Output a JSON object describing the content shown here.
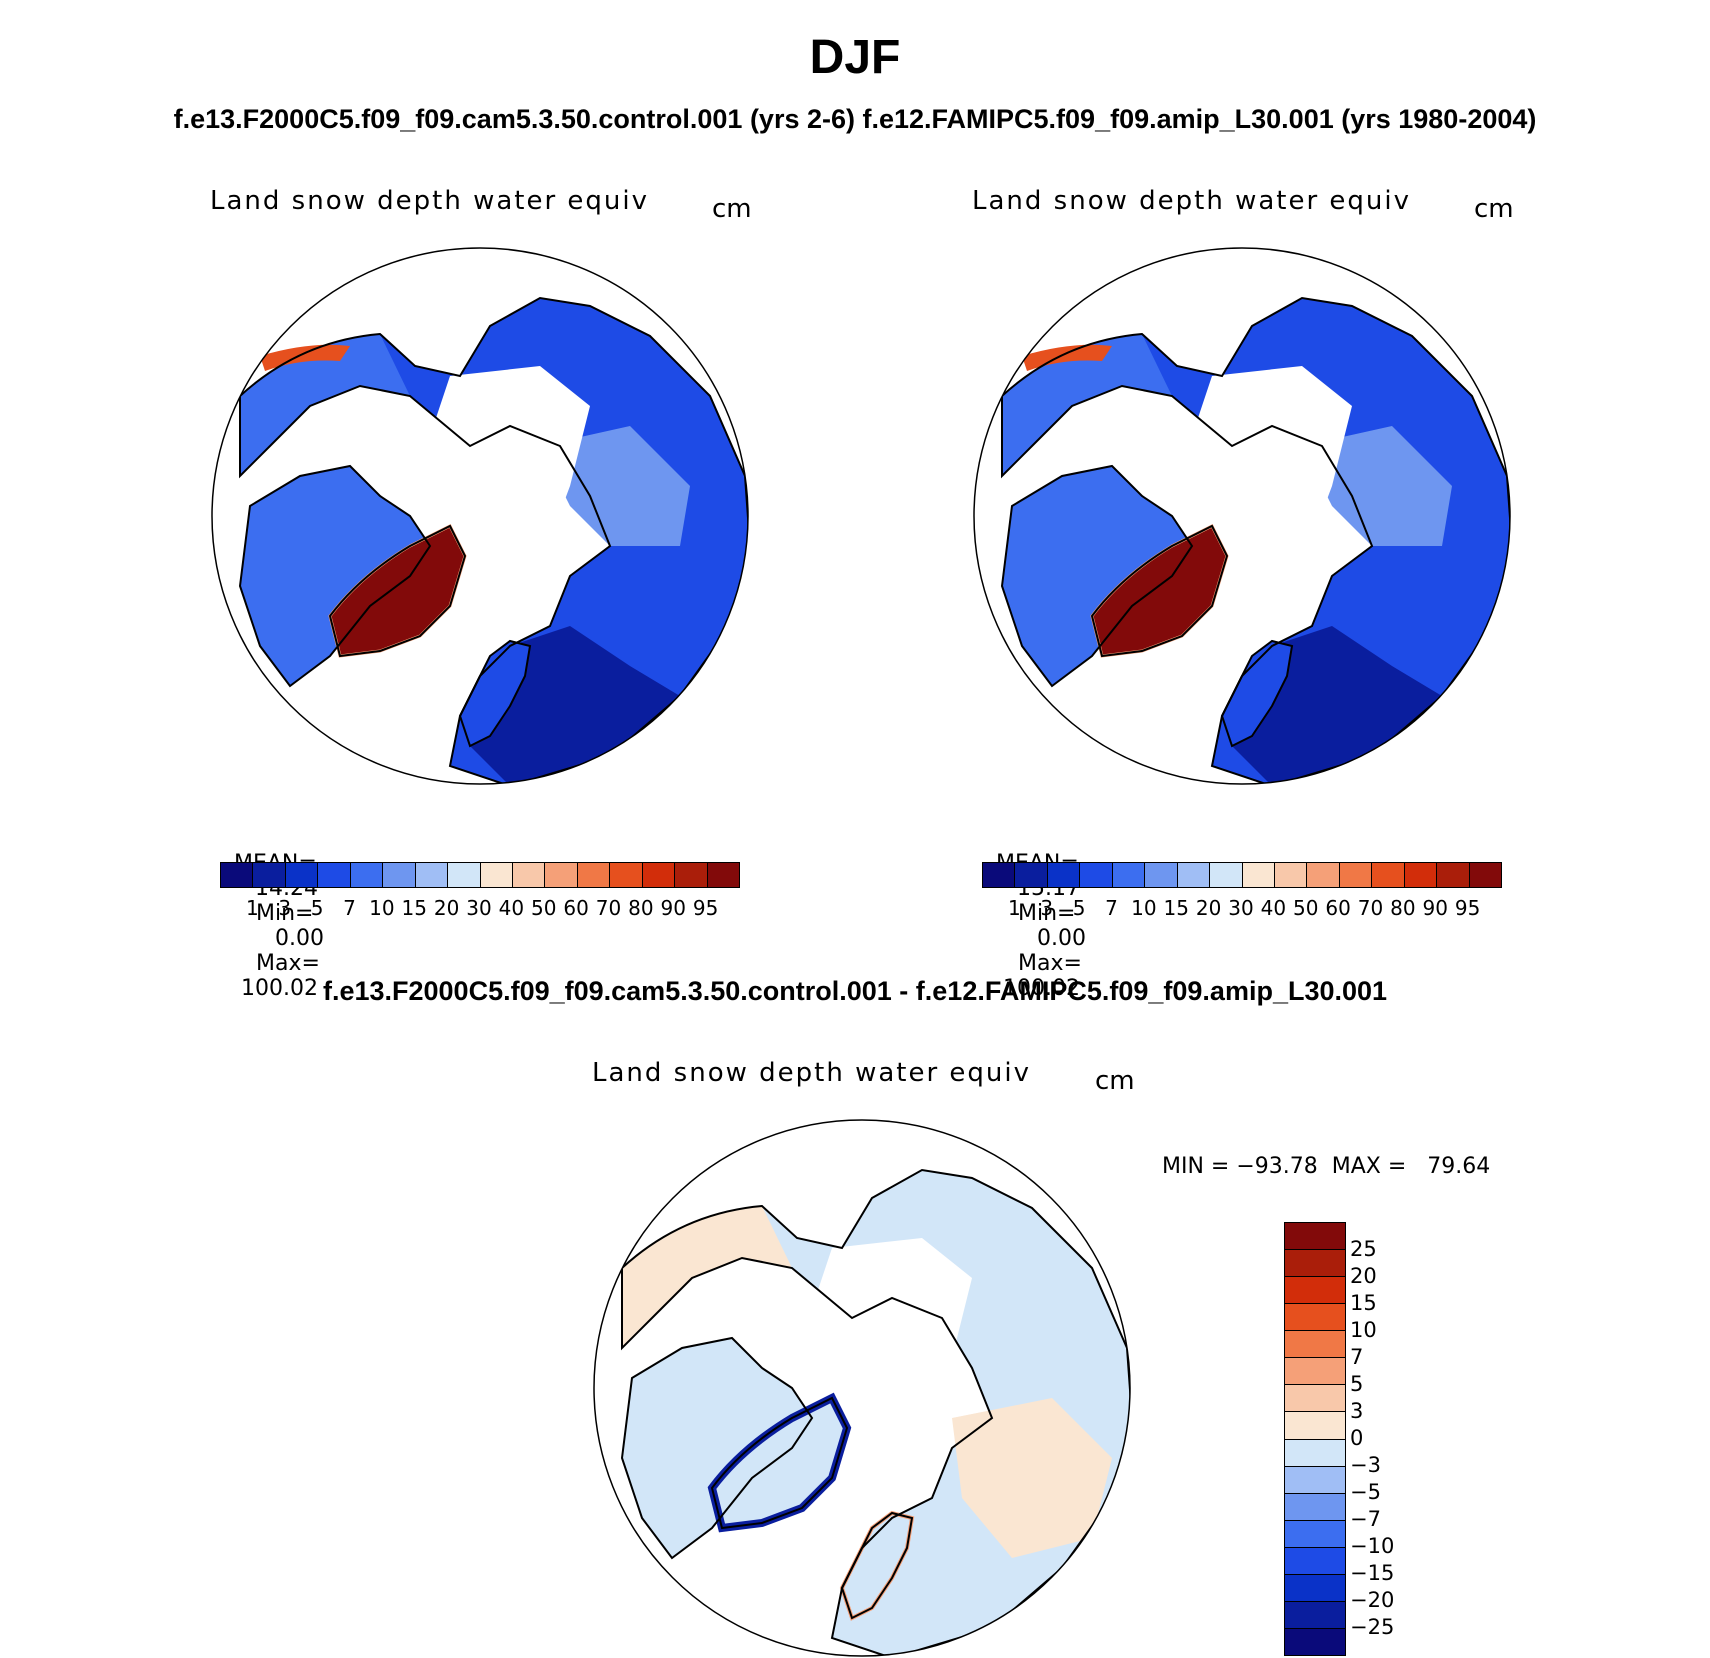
{
  "figure": {
    "title": "DJF",
    "subtitle_top": "f.e13.F2000C5.f09_f09.cam5.3.50.control.001 (yrs 2-6)  f.e12.FAMIPC5.f09_f09.amip_L30.001 (yrs 1980-2004)",
    "subtitle_diff": "f.e13.F2000C5.f09_f09.cam5.3.50.control.001 - f.e12.FAMIPC5.f09_f09.amip_L30.001"
  },
  "panels": [
    {
      "variable": "Land snow depth water equiv",
      "units": "cm",
      "mean_label": "MEAN=",
      "mean": "14.24",
      "min_label": "Min=",
      "min": "0.00",
      "max_label": "Max=",
      "max": "100.02",
      "greenland_level": 100.02
    },
    {
      "variable": "Land snow depth water equiv",
      "units": "cm",
      "mean_label": "MEAN=",
      "mean": "15.17",
      "min_label": "Min=",
      "min": "0.00",
      "max_label": "Max=",
      "max": "100.02",
      "greenland_level": 100.02
    }
  ],
  "diff_panel": {
    "variable": "Land snow depth water equiv",
    "units": "cm",
    "minmax": "MIN = −93.78  MAX =   79.64"
  },
  "colorbar_abs": {
    "ticks": [
      "1",
      "3",
      "5",
      "7",
      "10",
      "15",
      "20",
      "30",
      "40",
      "50",
      "60",
      "70",
      "80",
      "90",
      "95"
    ],
    "colors": [
      "#0a0a7a",
      "#0a1e9e",
      "#0a32c8",
      "#1e4be6",
      "#3c6ef0",
      "#6e96f0",
      "#a0bef5",
      "#d2e6f8",
      "#fae6d2",
      "#f8c8aa",
      "#f5a078",
      "#f07846",
      "#e6501e",
      "#d22d0a",
      "#aa1e0a",
      "#820a0a"
    ]
  },
  "colorbar_diff": {
    "ticks": [
      "25",
      "20",
      "15",
      "10",
      "7",
      "5",
      "3",
      "0",
      "−3",
      "−5",
      "−7",
      "−10",
      "−15",
      "−20",
      "−25"
    ],
    "colors": [
      "#820a0a",
      "#aa1e0a",
      "#d22d0a",
      "#e6501e",
      "#f07846",
      "#f5a078",
      "#f8c8aa",
      "#fae6d2",
      "#d2e6f8",
      "#a0bef5",
      "#6e96f0",
      "#3c6ef0",
      "#1e4be6",
      "#0a32c8",
      "#0a1e9e",
      "#0a0a7a"
    ]
  }
}
